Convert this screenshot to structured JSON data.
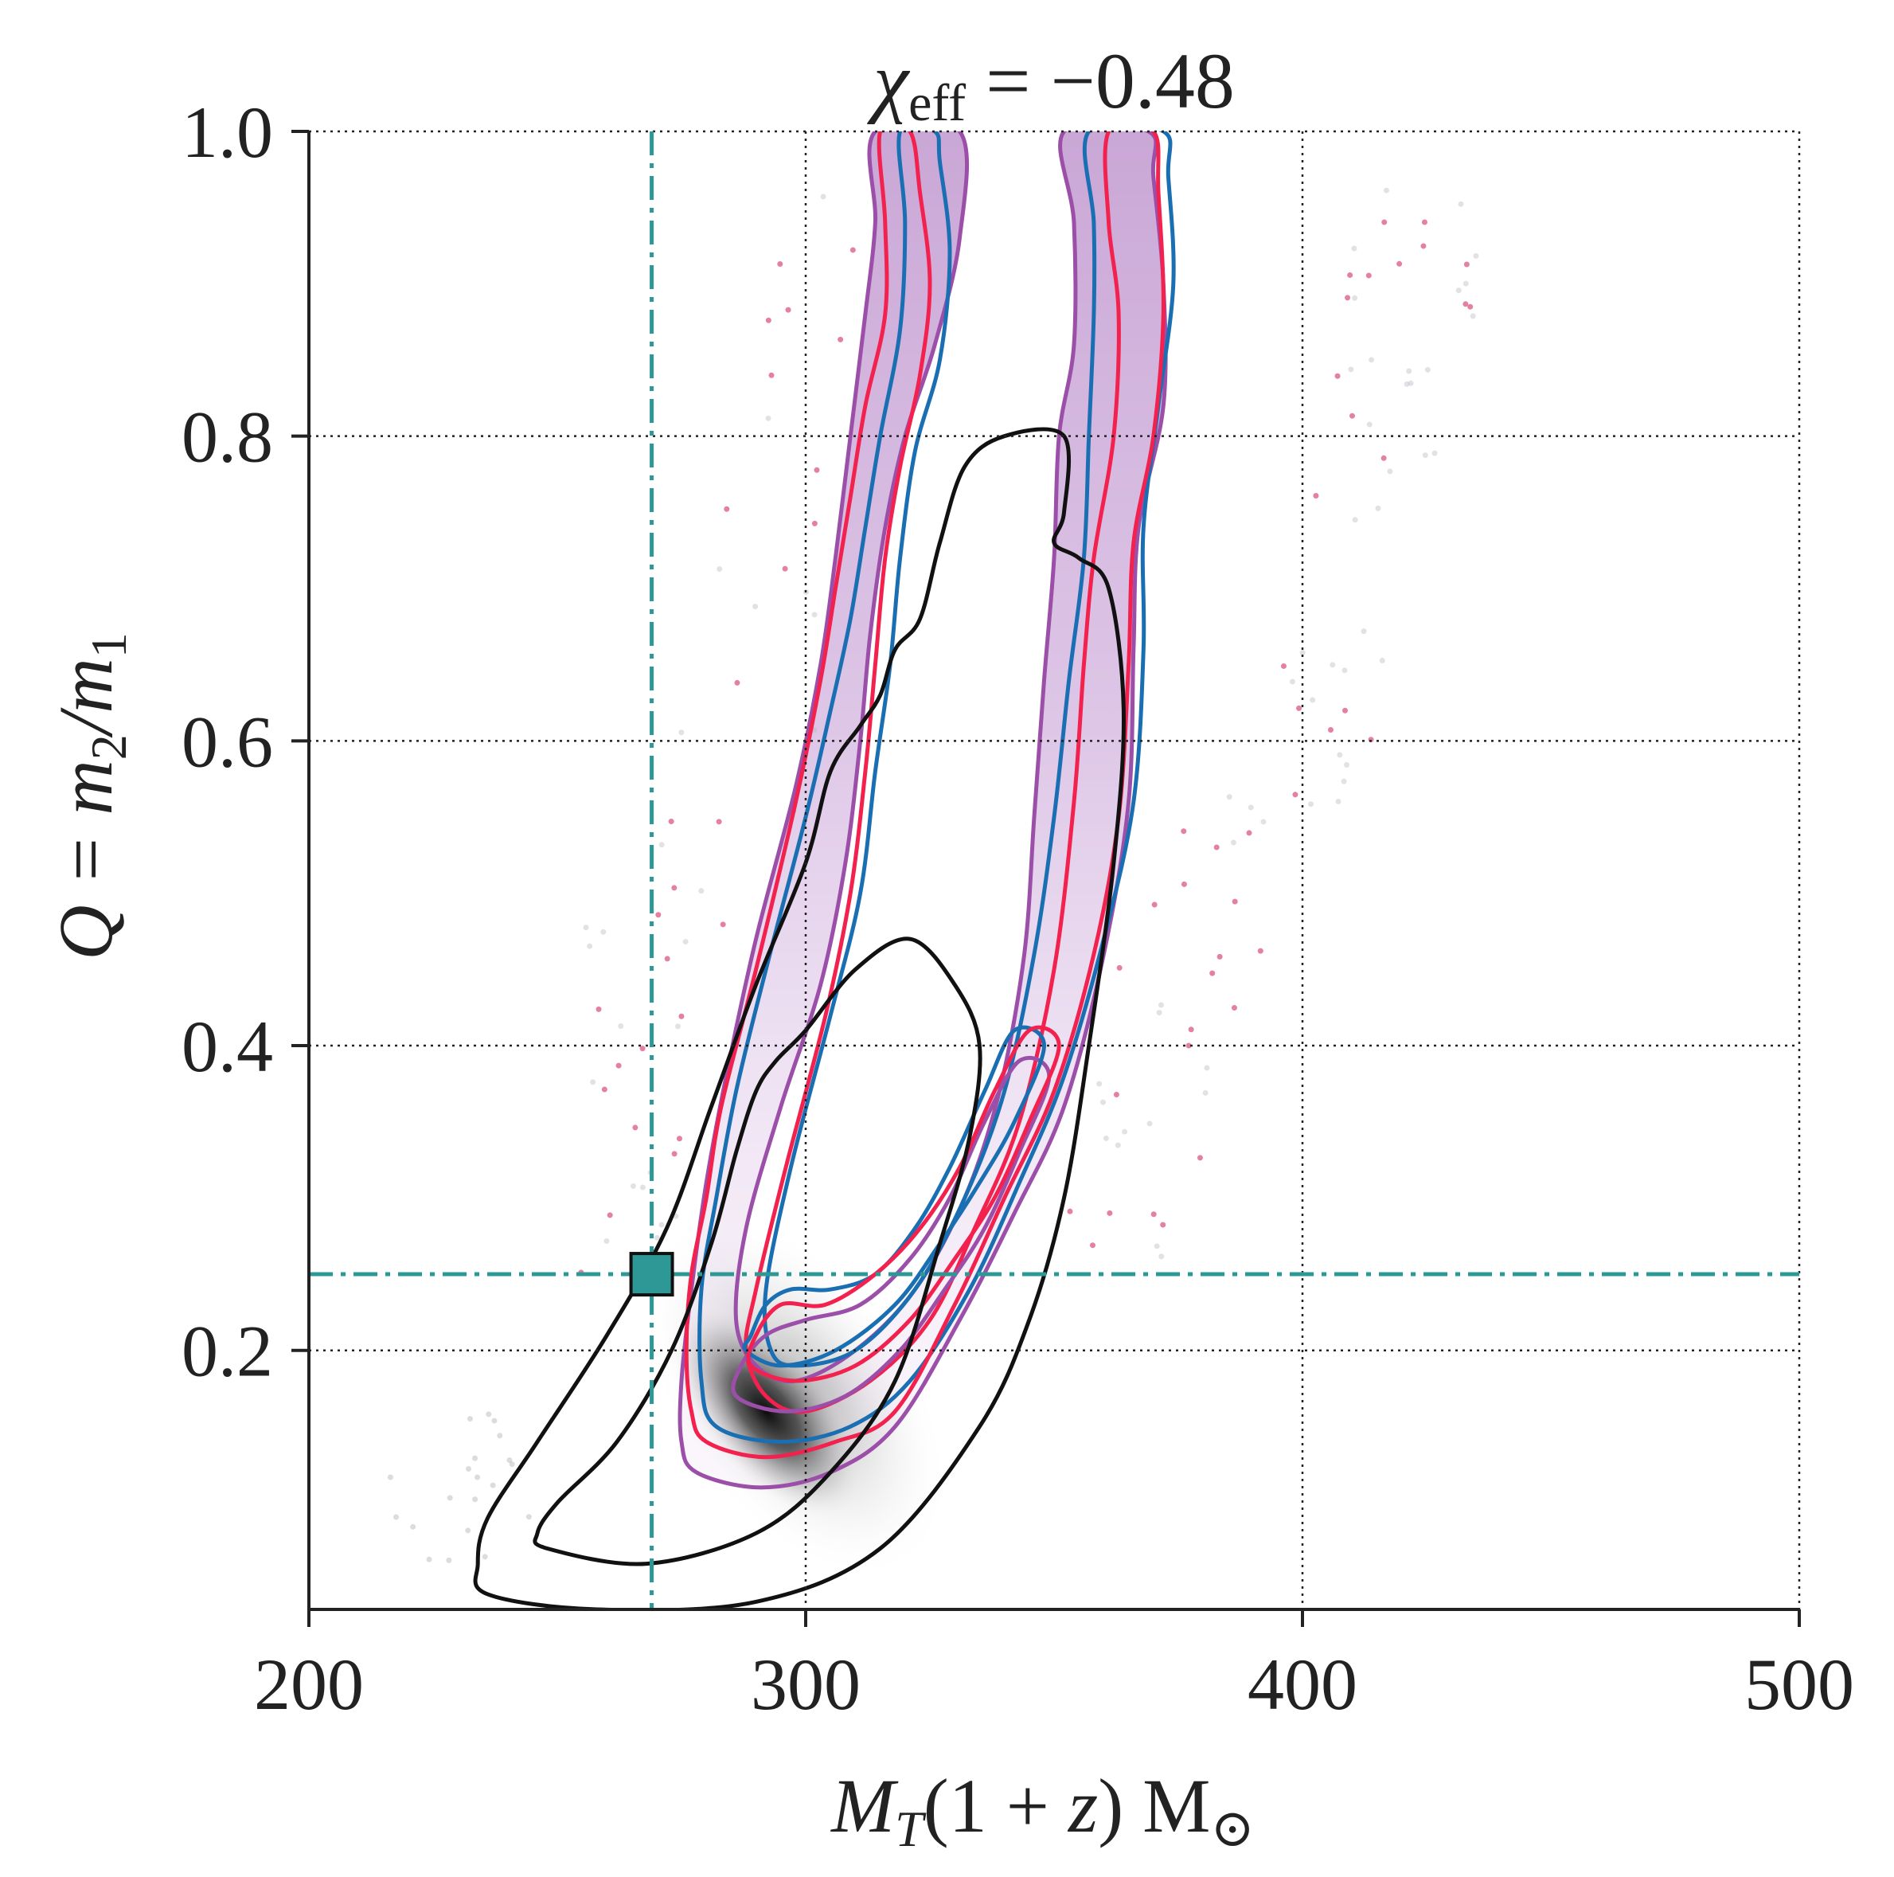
{
  "chart_data": {
    "type": "scatter",
    "title": "χ_eff = −0.48",
    "title_parts": {
      "symbol": "χ",
      "subscript": "eff",
      "rest": " = −0.48"
    },
    "xlabel": "M_T(1+z) M_⊙",
    "xlabel_parts": {
      "a": "M",
      "sub": "T",
      "b": "(1 + ",
      "c": "z",
      "d": ") M",
      "e": "⊙"
    },
    "ylabel": "Q = m_2/m_1",
    "ylabel_parts": {
      "a": "Q = m",
      "sub1": "2",
      "b": "/m",
      "sub2": "1"
    },
    "xlim": [
      200,
      500
    ],
    "ylim": [
      0.03,
      1.0
    ],
    "x_ticks": [
      200,
      300,
      400,
      500
    ],
    "x_tick_labels": [
      "200",
      "300",
      "400",
      "500"
    ],
    "y_ticks": [
      0.2,
      0.4,
      0.6,
      0.8,
      1.0
    ],
    "y_tick_labels": [
      "0.2",
      "0.4",
      "0.6",
      "0.8",
      "1.0"
    ],
    "grid": true,
    "true_value": {
      "x": 269,
      "y": 0.25
    },
    "colors": {
      "reference": "#2e9896",
      "gray_contours": "#111111",
      "red": "#f2214e",
      "blue": "#1a6fb3",
      "purple": "#9c4fa8",
      "purple_fill": "#c9a2d6",
      "scatter_red": "#d94a78"
    },
    "contours": {
      "gray_outer": [
        [
          236,
          0.04
        ],
        [
          258,
          0.03
        ],
        [
          290,
          0.035
        ],
        [
          315,
          0.07
        ],
        [
          335,
          0.15
        ],
        [
          345,
          0.22
        ],
        [
          352,
          0.3
        ],
        [
          357,
          0.4
        ],
        [
          362,
          0.52
        ],
        [
          364,
          0.62
        ],
        [
          361,
          0.7
        ],
        [
          355,
          0.72
        ],
        [
          350,
          0.73
        ],
        [
          352,
          0.75
        ],
        [
          352,
          0.8
        ],
        [
          340,
          0.8
        ],
        [
          332,
          0.78
        ],
        [
          327,
          0.73
        ],
        [
          323,
          0.68
        ],
        [
          318,
          0.66
        ],
        [
          315,
          0.63
        ],
        [
          311,
          0.61
        ],
        [
          305,
          0.58
        ],
        [
          300,
          0.52
        ],
        [
          290,
          0.44
        ],
        [
          281,
          0.36
        ],
        [
          272,
          0.28
        ],
        [
          260,
          0.21
        ],
        [
          246,
          0.14
        ],
        [
          236,
          0.09
        ],
        [
          234,
          0.06
        ]
      ],
      "gray_inner": [
        [
          248,
          0.07
        ],
        [
          268,
          0.06
        ],
        [
          290,
          0.08
        ],
        [
          305,
          0.12
        ],
        [
          318,
          0.18
        ],
        [
          327,
          0.27
        ],
        [
          333,
          0.34
        ],
        [
          335,
          0.4
        ],
        [
          330,
          0.44
        ],
        [
          321,
          0.47
        ],
        [
          310,
          0.45
        ],
        [
          300,
          0.41
        ],
        [
          294,
          0.39
        ],
        [
          290,
          0.37
        ],
        [
          286,
          0.33
        ],
        [
          281,
          0.27
        ],
        [
          273,
          0.2
        ],
        [
          262,
          0.14
        ],
        [
          250,
          0.1
        ],
        [
          246,
          0.08
        ]
      ],
      "red_outer": [
        [
          280,
          0.14
        ],
        [
          292,
          0.13
        ],
        [
          306,
          0.14
        ],
        [
          318,
          0.16
        ],
        [
          330,
          0.23
        ],
        [
          340,
          0.3
        ],
        [
          350,
          0.37
        ],
        [
          358,
          0.46
        ],
        [
          363,
          0.55
        ],
        [
          365,
          0.65
        ],
        [
          366,
          0.73
        ],
        [
          370,
          0.8
        ],
        [
          372,
          0.88
        ],
        [
          371,
          0.96
        ],
        [
          370,
          1.0
        ],
        [
          361,
          1.0
        ],
        [
          361,
          0.94
        ],
        [
          363,
          0.88
        ],
        [
          362,
          0.8
        ],
        [
          358,
          0.72
        ],
        [
          356,
          0.65
        ],
        [
          354,
          0.56
        ],
        [
          350,
          0.45
        ],
        [
          343,
          0.35
        ],
        [
          334,
          0.28
        ],
        [
          325,
          0.22
        ],
        [
          313,
          0.18
        ],
        [
          300,
          0.16
        ],
        [
          292,
          0.17
        ],
        [
          288,
          0.2
        ],
        [
          290,
          0.24
        ],
        [
          296,
          0.32
        ],
        [
          304,
          0.42
        ],
        [
          309,
          0.5
        ],
        [
          312,
          0.58
        ],
        [
          314,
          0.65
        ],
        [
          316,
          0.72
        ],
        [
          319,
          0.78
        ],
        [
          323,
          0.84
        ],
        [
          325,
          0.9
        ],
        [
          323,
          0.96
        ],
        [
          321,
          1.0
        ],
        [
          315,
          1.0
        ],
        [
          316,
          0.94
        ],
        [
          316,
          0.88
        ],
        [
          312,
          0.82
        ],
        [
          309,
          0.76
        ],
        [
          306,
          0.7
        ],
        [
          303,
          0.64
        ],
        [
          298,
          0.56
        ],
        [
          290,
          0.45
        ],
        [
          283,
          0.36
        ],
        [
          280,
          0.3
        ],
        [
          277,
          0.25
        ],
        [
          276,
          0.2
        ],
        [
          277,
          0.16
        ]
      ],
      "blue_outer": [
        [
          282,
          0.15
        ],
        [
          295,
          0.14
        ],
        [
          309,
          0.15
        ],
        [
          321,
          0.18
        ],
        [
          333,
          0.24
        ],
        [
          343,
          0.31
        ],
        [
          352,
          0.38
        ],
        [
          360,
          0.47
        ],
        [
          366,
          0.56
        ],
        [
          368,
          0.66
        ],
        [
          368,
          0.74
        ],
        [
          371,
          0.82
        ],
        [
          374,
          0.9
        ],
        [
          373,
          0.97
        ],
        [
          372,
          1.0
        ],
        [
          357,
          1.0
        ],
        [
          358,
          0.94
        ],
        [
          358,
          0.88
        ],
        [
          357,
          0.8
        ],
        [
          356,
          0.72
        ],
        [
          353,
          0.64
        ],
        [
          350,
          0.55
        ],
        [
          346,
          0.46
        ],
        [
          340,
          0.37
        ],
        [
          332,
          0.3
        ],
        [
          322,
          0.24
        ],
        [
          310,
          0.2
        ],
        [
          298,
          0.19
        ],
        [
          293,
          0.2
        ],
        [
          292,
          0.24
        ],
        [
          297,
          0.32
        ],
        [
          305,
          0.42
        ],
        [
          311,
          0.5
        ],
        [
          314,
          0.58
        ],
        [
          317,
          0.65
        ],
        [
          319,
          0.72
        ],
        [
          322,
          0.79
        ],
        [
          327,
          0.85
        ],
        [
          329,
          0.92
        ],
        [
          327,
          0.98
        ],
        [
          326,
          1.0
        ],
        [
          319,
          1.0
        ],
        [
          320,
          0.94
        ],
        [
          319,
          0.87
        ],
        [
          315,
          0.8
        ],
        [
          312,
          0.74
        ],
        [
          309,
          0.68
        ],
        [
          305,
          0.62
        ],
        [
          300,
          0.55
        ],
        [
          292,
          0.45
        ],
        [
          286,
          0.37
        ],
        [
          282,
          0.3
        ],
        [
          279,
          0.24
        ],
        [
          279,
          0.18
        ]
      ],
      "purple_outer": [
        [
          278,
          0.12
        ],
        [
          291,
          0.11
        ],
        [
          305,
          0.12
        ],
        [
          318,
          0.15
        ],
        [
          331,
          0.22
        ],
        [
          342,
          0.29
        ],
        [
          352,
          0.36
        ],
        [
          360,
          0.46
        ],
        [
          365,
          0.56
        ],
        [
          366,
          0.66
        ],
        [
          367,
          0.74
        ],
        [
          372,
          0.82
        ],
        [
          372,
          0.9
        ],
        [
          370,
          0.97
        ],
        [
          369,
          1.0
        ],
        [
          352,
          1.0
        ],
        [
          354,
          0.94
        ],
        [
          354,
          0.86
        ],
        [
          351,
          0.8
        ],
        [
          350,
          0.72
        ],
        [
          348,
          0.64
        ],
        [
          346,
          0.55
        ],
        [
          344,
          0.46
        ],
        [
          339,
          0.37
        ],
        [
          332,
          0.3
        ],
        [
          322,
          0.24
        ],
        [
          310,
          0.2
        ],
        [
          298,
          0.18
        ],
        [
          290,
          0.19
        ],
        [
          286,
          0.22
        ],
        [
          288,
          0.28
        ],
        [
          295,
          0.36
        ],
        [
          303,
          0.44
        ],
        [
          308,
          0.52
        ],
        [
          311,
          0.6
        ],
        [
          313,
          0.67
        ],
        [
          316,
          0.74
        ],
        [
          320,
          0.8
        ],
        [
          326,
          0.86
        ],
        [
          331,
          0.93
        ],
        [
          331,
          1.0
        ],
        [
          314,
          1.0
        ],
        [
          314,
          0.94
        ],
        [
          312,
          0.88
        ],
        [
          309,
          0.8
        ],
        [
          306,
          0.72
        ],
        [
          303,
          0.65
        ],
        [
          298,
          0.57
        ],
        [
          290,
          0.47
        ],
        [
          284,
          0.38
        ],
        [
          280,
          0.31
        ],
        [
          277,
          0.24
        ],
        [
          275,
          0.18
        ],
        [
          275,
          0.14
        ]
      ],
      "blue_inner": [
        [
          288,
          0.2
        ],
        [
          295,
          0.19
        ],
        [
          306,
          0.2
        ],
        [
          318,
          0.23
        ],
        [
          327,
          0.27
        ],
        [
          335,
          0.31
        ],
        [
          342,
          0.35
        ],
        [
          348,
          0.4
        ],
        [
          342,
          0.41
        ],
        [
          336,
          0.37
        ],
        [
          329,
          0.32
        ],
        [
          322,
          0.28
        ],
        [
          314,
          0.25
        ],
        [
          305,
          0.24
        ],
        [
          297,
          0.24
        ],
        [
          292,
          0.23
        ],
        [
          289,
          0.21
        ]
      ],
      "red_inner": [
        [
          289,
          0.19
        ],
        [
          298,
          0.18
        ],
        [
          310,
          0.19
        ],
        [
          321,
          0.22
        ],
        [
          330,
          0.26
        ],
        [
          338,
          0.3
        ],
        [
          345,
          0.35
        ],
        [
          351,
          0.4
        ],
        [
          345,
          0.41
        ],
        [
          338,
          0.37
        ],
        [
          331,
          0.32
        ],
        [
          323,
          0.28
        ],
        [
          314,
          0.25
        ],
        [
          304,
          0.23
        ],
        [
          295,
          0.23
        ],
        [
          290,
          0.21
        ]
      ],
      "purple_inner": [
        [
          286,
          0.17
        ],
        [
          296,
          0.16
        ],
        [
          308,
          0.17
        ],
        [
          319,
          0.2
        ],
        [
          328,
          0.24
        ],
        [
          336,
          0.28
        ],
        [
          343,
          0.33
        ],
        [
          349,
          0.38
        ],
        [
          343,
          0.39
        ],
        [
          336,
          0.35
        ],
        [
          329,
          0.3
        ],
        [
          321,
          0.26
        ],
        [
          311,
          0.23
        ],
        [
          300,
          0.22
        ],
        [
          292,
          0.21
        ],
        [
          287,
          0.19
        ]
      ]
    }
  }
}
